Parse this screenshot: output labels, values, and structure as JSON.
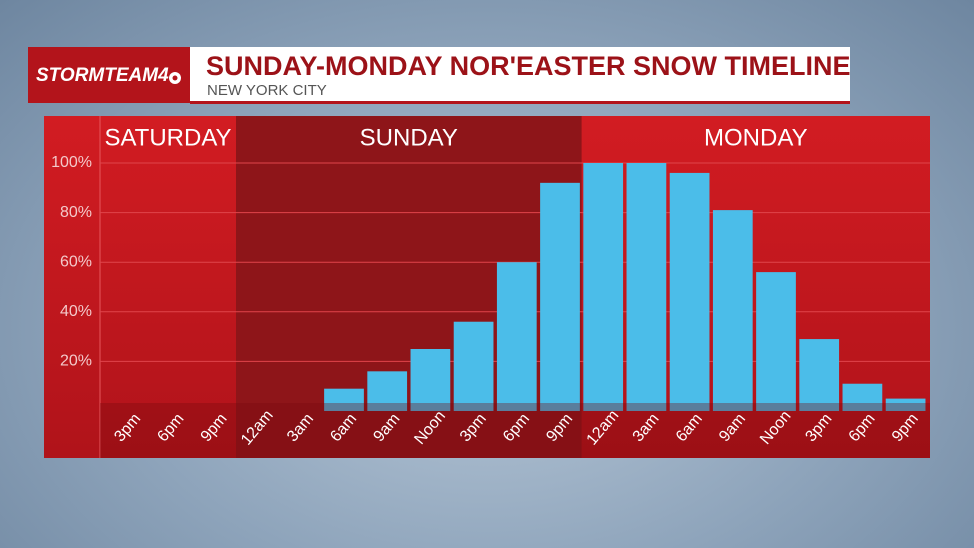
{
  "header": {
    "logo": "STORMTEAM4",
    "title": "SUNDAY-MONDAY NOR'EASTER SNOW TIMELINE",
    "subtitle": "NEW YORK CITY"
  },
  "chart_data": {
    "type": "bar",
    "color": "#4bbde9",
    "groups": [
      {
        "name": "SATURDAY",
        "categories": [
          "3pm",
          "6pm",
          "9pm"
        ],
        "values": [
          0,
          0,
          0
        ]
      },
      {
        "name": "SUNDAY",
        "categories": [
          "12am",
          "3am",
          "6am",
          "9am",
          "Noon",
          "3pm",
          "6pm",
          "9pm"
        ],
        "values": [
          0,
          0,
          9,
          16,
          25,
          36,
          60,
          92
        ]
      },
      {
        "name": "MONDAY",
        "categories": [
          "12am",
          "3am",
          "6am",
          "9am",
          "Noon",
          "3pm",
          "6pm",
          "9pm"
        ],
        "values": [
          100,
          100,
          96,
          81,
          56,
          29,
          11,
          5
        ]
      }
    ],
    "ylim": [
      0,
      100
    ],
    "yticks": [
      {
        "value": 20,
        "label": "20%"
      },
      {
        "value": 40,
        "label": "40%"
      },
      {
        "value": 60,
        "label": "60%"
      },
      {
        "value": 80,
        "label": "80%"
      },
      {
        "value": 100,
        "label": "100%"
      }
    ],
    "grid": true
  }
}
